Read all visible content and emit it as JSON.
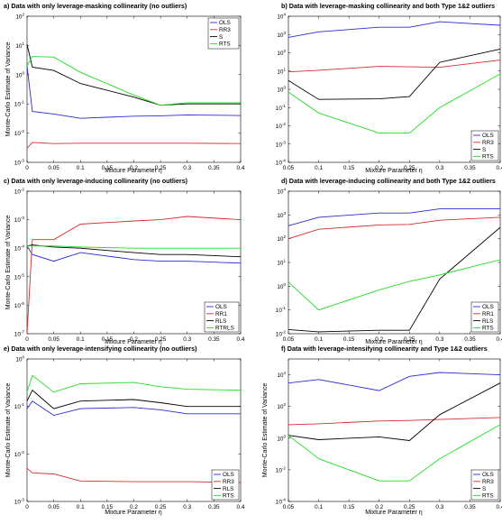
{
  "colors": {
    "blue": "#2b2bd9",
    "red": "#d92b2b",
    "black": "#000000",
    "green": "#22dd22"
  },
  "chart_data": [
    {
      "type": "line",
      "title": "a) Data with only leverage-masking collinearity (no outliers)",
      "xlabel": "Mixture Parameter η",
      "ylabel": "Monte-Carlo Estimate of Variance",
      "yscale": "log",
      "xlim": [
        0,
        0.4
      ],
      "ylim": [
        0.001,
        100
      ],
      "xticks": [
        "0",
        "0.05",
        "0.1",
        "0.15",
        "0.2",
        "0.25",
        "0.3",
        "0.35",
        "0.4"
      ],
      "yticks": [
        {
          "base": "10",
          "exp": "-3"
        },
        {
          "base": "10",
          "exp": "-2"
        },
        {
          "base": "10",
          "exp": "-1"
        },
        {
          "base": "10",
          "exp": "0"
        },
        {
          "base": "10",
          "exp": "1"
        },
        {
          "base": "10",
          "exp": "2"
        }
      ],
      "legend": "top-right",
      "x": [
        0,
        0.01,
        0.05,
        0.1,
        0.2,
        0.25,
        0.3,
        0.4
      ],
      "series": [
        {
          "name": "OLS",
          "color": "blue",
          "values": [
            2.0,
            0.055,
            0.045,
            0.032,
            0.038,
            0.039,
            0.042,
            0.04
          ]
        },
        {
          "name": "RR3",
          "color": "red",
          "values": [
            0.003,
            0.0048,
            0.0044,
            0.0045,
            0.0045,
            0.0045,
            0.0045,
            0.0044
          ]
        },
        {
          "name": "S",
          "color": "black",
          "values": [
            11,
            1.8,
            1.4,
            0.5,
            0.17,
            0.09,
            0.1,
            0.1
          ]
        },
        {
          "name": "RTS",
          "color": "green",
          "values": [
            2.0,
            4.2,
            4.0,
            1.2,
            0.2,
            0.09,
            0.11,
            0.11
          ]
        }
      ]
    },
    {
      "type": "line",
      "title": "b) Data with leverage-masking collinearity and both Type 1&2 outliers",
      "xlabel": "Mixture Parameter η",
      "ylabel": "",
      "yscale": "log",
      "xlim": [
        0.05,
        0.4
      ],
      "ylim": [
        0.0001,
        10000
      ],
      "xticks": [
        "0.05",
        "0.1",
        "0.15",
        "0.2",
        "0.25",
        "0.3",
        "0.35",
        "0.4"
      ],
      "yticks": [
        {
          "base": "10",
          "exp": "-4"
        },
        {
          "base": "10",
          "exp": "-3"
        },
        {
          "base": "10",
          "exp": "-2"
        },
        {
          "base": "10",
          "exp": "-1"
        },
        {
          "base": "10",
          "exp": "0"
        },
        {
          "base": "10",
          "exp": "1"
        },
        {
          "base": "10",
          "exp": "2"
        },
        {
          "base": "10",
          "exp": "3"
        },
        {
          "base": "10",
          "exp": "4"
        }
      ],
      "legend": "bottom-right",
      "x": [
        0.05,
        0.1,
        0.2,
        0.25,
        0.3,
        0.4
      ],
      "series": [
        {
          "name": "OLS",
          "color": "blue",
          "values": [
            700,
            1400,
            2500,
            2500,
            5000,
            3200
          ]
        },
        {
          "name": "RR3",
          "color": "red",
          "values": [
            9,
            11,
            18,
            17,
            16,
            40
          ]
        },
        {
          "name": "S",
          "color": "black",
          "values": [
            3,
            0.28,
            0.3,
            0.4,
            30,
            160
          ]
        },
        {
          "name": "RTS",
          "color": "green",
          "values": [
            0.7,
            0.05,
            0.004,
            0.004,
            0.1,
            7
          ]
        }
      ]
    },
    {
      "type": "line",
      "title": "c) Data with only leverage-inducing collinearity (no outliers)",
      "xlabel": "Mixture Parameter η",
      "ylabel": "Monte-Carlo Estimate of Variance",
      "yscale": "log",
      "xlim": [
        0,
        0.4
      ],
      "ylim": [
        1e-07,
        0.01
      ],
      "xticks": [
        "0",
        "0.05",
        "0.1",
        "0.15",
        "0.2",
        "0.25",
        "0.3",
        "0.35",
        "0.4"
      ],
      "yticks": [
        {
          "base": "10",
          "exp": "-7"
        },
        {
          "base": "10",
          "exp": "-6"
        },
        {
          "base": "10",
          "exp": "-5"
        },
        {
          "base": "10",
          "exp": "-4"
        },
        {
          "base": "10",
          "exp": "-3"
        },
        {
          "base": "10",
          "exp": "-2"
        }
      ],
      "legend": "bottom-right",
      "x": [
        0,
        0.01,
        0.05,
        0.1,
        0.2,
        0.25,
        0.3,
        0.4
      ],
      "series": [
        {
          "name": "OLS",
          "color": "blue",
          "values": [
            0.00012,
            6e-05,
            3.5e-05,
            7e-05,
            4e-05,
            3.5e-05,
            3.5e-05,
            3e-05
          ]
        },
        {
          "name": "RR1",
          "color": "red",
          "values": [
            1e-07,
            0.0002,
            0.0002,
            0.0007,
            0.0009,
            0.001,
            0.0013,
            0.001
          ]
        },
        {
          "name": "RLS",
          "color": "black",
          "values": [
            0.00012,
            0.00013,
            0.00011,
            0.0001,
            7e-05,
            6e-05,
            6e-05,
            5e-05
          ]
        },
        {
          "name": "RTRLS",
          "color": "green",
          "values": [
            0.00012,
            0.00012,
            0.00012,
            0.00011,
            0.0001,
            0.0001,
            0.0001,
            0.0001
          ]
        }
      ]
    },
    {
      "type": "line",
      "title": "d) Data with leverage-inducing collinearity and both Type 1&2 outliers",
      "xlabel": "Mixture Parameter η",
      "ylabel": "",
      "yscale": "log",
      "xlim": [
        0.05,
        0.4
      ],
      "ylim": [
        0.01,
        10000
      ],
      "xticks": [
        "0.05",
        "0.1",
        "0.15",
        "0.2",
        "0.25",
        "0.3",
        "0.35",
        "0.4"
      ],
      "yticks": [
        {
          "base": "10",
          "exp": "-2"
        },
        {
          "base": "10",
          "exp": "-1"
        },
        {
          "base": "10",
          "exp": "0"
        },
        {
          "base": "10",
          "exp": "1"
        },
        {
          "base": "10",
          "exp": "2"
        },
        {
          "base": "10",
          "exp": "3"
        },
        {
          "base": "10",
          "exp": "4"
        }
      ],
      "legend": "bottom-right",
      "x": [
        0.05,
        0.1,
        0.2,
        0.25,
        0.3,
        0.4
      ],
      "series": [
        {
          "name": "OLS",
          "color": "blue",
          "values": [
            350,
            800,
            1200,
            1200,
            1800,
            1800
          ]
        },
        {
          "name": "RR1",
          "color": "red",
          "values": [
            100,
            250,
            380,
            400,
            600,
            800
          ]
        },
        {
          "name": "RLS",
          "color": "black",
          "values": [
            0.015,
            0.012,
            0.014,
            0.014,
            2,
            300
          ]
        },
        {
          "name": "RTS",
          "color": "green",
          "values": [
            1.5,
            0.1,
            0.7,
            1.6,
            3,
            13
          ]
        }
      ]
    },
    {
      "type": "line",
      "title": "e) Data with only leverage-intensifying collinearity (no outliers)",
      "xlabel": "Mixture Parameter η",
      "ylabel": "Monte-Carlo Estimate of Variance",
      "yscale": "log",
      "xlim": [
        0,
        0.4
      ],
      "ylim": [
        0.001,
        1
      ],
      "xticks": [
        "0",
        "0.05",
        "0.1",
        "0.15",
        "0.2",
        "0.25",
        "0.3",
        "0.35",
        "0.4"
      ],
      "yticks": [
        {
          "base": "10",
          "exp": "-3"
        },
        {
          "base": "10",
          "exp": "-2"
        },
        {
          "base": "10",
          "exp": "-1"
        },
        {
          "base": "10",
          "exp": "0"
        }
      ],
      "legend": "bottom-right",
      "x": [
        0,
        0.01,
        0.05,
        0.1,
        0.2,
        0.25,
        0.3,
        0.4
      ],
      "series": [
        {
          "name": "OLS",
          "color": "blue",
          "values": [
            0.09,
            0.13,
            0.065,
            0.09,
            0.095,
            0.085,
            0.07,
            0.07
          ]
        },
        {
          "name": "RR3",
          "color": "red",
          "values": [
            0.005,
            0.004,
            0.0038,
            0.0027,
            0.0026,
            0.0026,
            0.0026,
            0.0025
          ]
        },
        {
          "name": "RLS",
          "color": "black",
          "values": [
            0.13,
            0.22,
            0.09,
            0.13,
            0.14,
            0.12,
            0.1,
            0.1
          ]
        },
        {
          "name": "RTS",
          "color": "green",
          "values": [
            0.2,
            0.45,
            0.2,
            0.3,
            0.32,
            0.26,
            0.23,
            0.22
          ]
        }
      ]
    },
    {
      "type": "line",
      "title": "f) Data with leverage-intensifying collinearity and Type 1&2 outliers",
      "xlabel": "Mixture Parameter η",
      "ylabel": "Monte-Carlo Estimate of Variance",
      "yscale": "log",
      "xlim": [
        0.05,
        0.4
      ],
      "ylim": [
        0.0001,
        100000
      ],
      "xticks": [
        "0.05",
        "0.1",
        "0.15",
        "0.2",
        "0.25",
        "0.3",
        "0.35",
        "0.4"
      ],
      "yticks": [
        {
          "base": "10",
          "exp": "-4"
        },
        {
          "base": "10",
          "exp": "-2"
        },
        {
          "base": "10",
          "exp": "0"
        },
        {
          "base": "10",
          "exp": "2"
        },
        {
          "base": "10",
          "exp": "4"
        }
      ],
      "legend": "bottom-right",
      "x": [
        0.05,
        0.1,
        0.2,
        0.25,
        0.3,
        0.4
      ],
      "series": [
        {
          "name": "OLS",
          "color": "blue",
          "values": [
            3000,
            5000,
            1000,
            8000,
            14000,
            10000
          ]
        },
        {
          "name": "RR3",
          "color": "red",
          "values": [
            7,
            8,
            12,
            13,
            15,
            20
          ]
        },
        {
          "name": "S",
          "color": "black",
          "values": [
            1.5,
            0.8,
            1.2,
            0.7,
            30,
            3000
          ]
        },
        {
          "name": "RTS",
          "color": "green",
          "values": [
            1.5,
            0.05,
            0.002,
            0.002,
            0.05,
            7
          ]
        }
      ]
    }
  ]
}
